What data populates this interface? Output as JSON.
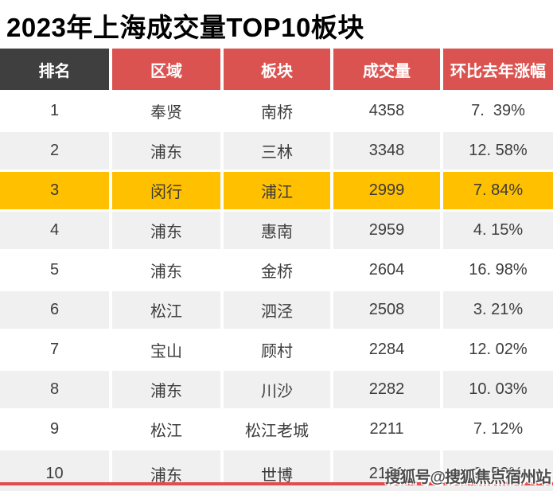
{
  "title": "2023年上海成交量TOP10板块",
  "watermark": "搜狐号@搜狐焦点宿州站",
  "colors": {
    "header_red": "#db5350",
    "header_dark": "#3f3f3f",
    "highlight_yellow": "#ffc000",
    "row_gray": "#f0f0f0",
    "bottom_line_red": "#e14c4c",
    "header_text": "#ffffff",
    "cell_text": "#3d3d3d"
  },
  "table": {
    "headers": [
      "排名",
      "区域",
      "板块",
      "成交量",
      "环比去年涨幅"
    ],
    "rows": [
      {
        "rank": "1",
        "region": "奉贤",
        "area": "南桥",
        "volume": "4358",
        "change": "7.  39%"
      },
      {
        "rank": "2",
        "region": "浦东",
        "area": "三林",
        "volume": "3348",
        "change": "12. 58%"
      },
      {
        "rank": "3",
        "region": "闵行",
        "area": "浦江",
        "volume": "2999",
        "change": "7. 84%"
      },
      {
        "rank": "4",
        "region": "浦东",
        "area": "惠南",
        "volume": "2959",
        "change": "4. 15%"
      },
      {
        "rank": "5",
        "region": "浦东",
        "area": "金桥",
        "volume": "2604",
        "change": "16. 98%"
      },
      {
        "rank": "6",
        "region": "松江",
        "area": "泗泾",
        "volume": "2508",
        "change": "3. 21%"
      },
      {
        "rank": "7",
        "region": "宝山",
        "area": "顾村",
        "volume": "2284",
        "change": "12. 02%"
      },
      {
        "rank": "8",
        "region": "浦东",
        "area": "川沙",
        "volume": "2282",
        "change": "10. 03%"
      },
      {
        "rank": "9",
        "region": "松江",
        "area": "松江老城",
        "volume": "2211",
        "change": "7. 12%"
      },
      {
        "rank": "10",
        "region": "浦东",
        "area": "世博",
        "volume": "2191",
        "change": "9. 50%"
      }
    ],
    "highlighted_rank": "3"
  },
  "chart_data": {
    "type": "table",
    "title": "2023年上海成交量TOP10板块",
    "columns": [
      "排名",
      "区域",
      "板块",
      "成交量",
      "环比去年涨幅"
    ],
    "rows": [
      [
        1,
        "奉贤",
        "南桥",
        4358,
        "7.39%"
      ],
      [
        2,
        "浦东",
        "三林",
        3348,
        "12.58%"
      ],
      [
        3,
        "闵行",
        "浦江",
        2999,
        "7.84%"
      ],
      [
        4,
        "浦东",
        "惠南",
        2959,
        "4.15%"
      ],
      [
        5,
        "浦东",
        "金桥",
        2604,
        "16.98%"
      ],
      [
        6,
        "松江",
        "泗泾",
        2508,
        "3.21%"
      ],
      [
        7,
        "宝山",
        "顾村",
        2284,
        "12.02%"
      ],
      [
        8,
        "浦东",
        "川沙",
        2282,
        "10.03%"
      ],
      [
        9,
        "松江",
        "松江老城",
        2211,
        "7.12%"
      ],
      [
        10,
        "浦东",
        "世博",
        2191,
        "9.50%"
      ]
    ],
    "highlighted_row_rank": 3
  }
}
